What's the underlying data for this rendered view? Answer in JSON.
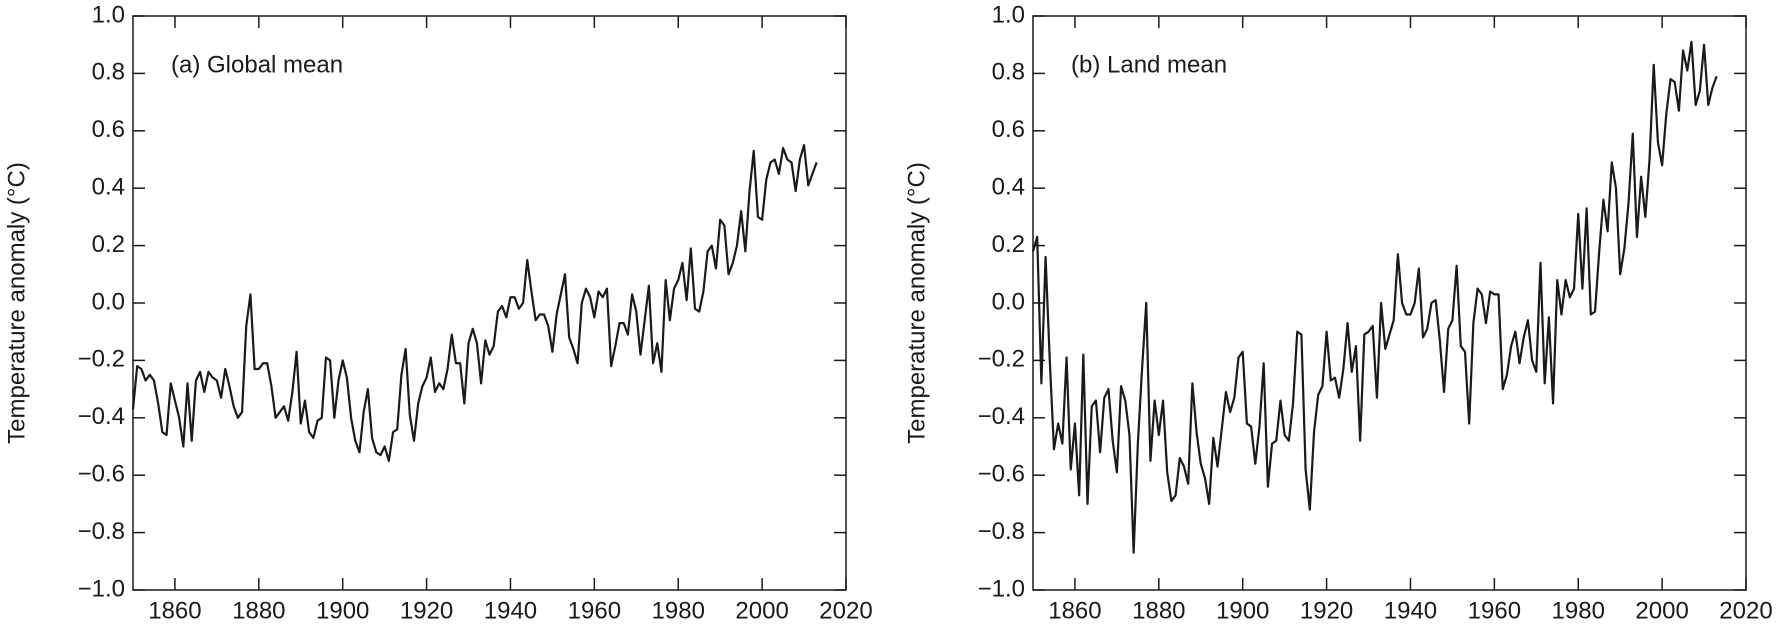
{
  "chart_data": [
    {
      "type": "line",
      "annotation": "(a) Global mean",
      "ylabel": "Temperature anomaly (°C)",
      "color": "#1a1a1a",
      "x": [
        1850,
        1851,
        1852,
        1853,
        1854,
        1855,
        1856,
        1857,
        1858,
        1859,
        1860,
        1861,
        1862,
        1863,
        1864,
        1865,
        1866,
        1867,
        1868,
        1869,
        1870,
        1871,
        1872,
        1873,
        1874,
        1875,
        1876,
        1877,
        1878,
        1879,
        1880,
        1881,
        1882,
        1883,
        1884,
        1885,
        1886,
        1887,
        1888,
        1889,
        1890,
        1891,
        1892,
        1893,
        1894,
        1895,
        1896,
        1897,
        1898,
        1899,
        1900,
        1901,
        1902,
        1903,
        1904,
        1905,
        1906,
        1907,
        1908,
        1909,
        1910,
        1911,
        1912,
        1913,
        1914,
        1915,
        1916,
        1917,
        1918,
        1919,
        1920,
        1921,
        1922,
        1923,
        1924,
        1925,
        1926,
        1927,
        1928,
        1929,
        1930,
        1931,
        1932,
        1933,
        1934,
        1935,
        1936,
        1937,
        1938,
        1939,
        1940,
        1941,
        1942,
        1943,
        1944,
        1945,
        1946,
        1947,
        1948,
        1949,
        1950,
        1951,
        1952,
        1953,
        1954,
        1955,
        1956,
        1957,
        1958,
        1959,
        1960,
        1961,
        1962,
        1963,
        1964,
        1965,
        1966,
        1967,
        1968,
        1969,
        1970,
        1971,
        1972,
        1973,
        1974,
        1975,
        1976,
        1977,
        1978,
        1979,
        1980,
        1981,
        1982,
        1983,
        1984,
        1985,
        1986,
        1987,
        1988,
        1989,
        1990,
        1991,
        1992,
        1993,
        1994,
        1995,
        1996,
        1997,
        1998,
        1999,
        2000,
        2001,
        2002,
        2003,
        2004,
        2005,
        2006,
        2007,
        2008,
        2009,
        2010,
        2011,
        2012,
        2013
      ],
      "values": [
        -0.37,
        -0.22,
        -0.23,
        -0.27,
        -0.25,
        -0.27,
        -0.35,
        -0.45,
        -0.46,
        -0.28,
        -0.34,
        -0.4,
        -0.5,
        -0.28,
        -0.48,
        -0.27,
        -0.24,
        -0.31,
        -0.24,
        -0.26,
        -0.27,
        -0.33,
        -0.23,
        -0.29,
        -0.36,
        -0.4,
        -0.38,
        -0.08,
        0.03,
        -0.23,
        -0.23,
        -0.21,
        -0.21,
        -0.29,
        -0.4,
        -0.38,
        -0.36,
        -0.41,
        -0.31,
        -0.17,
        -0.42,
        -0.34,
        -0.45,
        -0.47,
        -0.41,
        -0.4,
        -0.19,
        -0.2,
        -0.4,
        -0.27,
        -0.2,
        -0.26,
        -0.4,
        -0.48,
        -0.52,
        -0.38,
        -0.3,
        -0.47,
        -0.52,
        -0.53,
        -0.5,
        -0.55,
        -0.45,
        -0.44,
        -0.25,
        -0.16,
        -0.39,
        -0.48,
        -0.35,
        -0.29,
        -0.26,
        -0.19,
        -0.31,
        -0.28,
        -0.3,
        -0.23,
        -0.11,
        -0.21,
        -0.21,
        -0.35,
        -0.14,
        -0.09,
        -0.14,
        -0.28,
        -0.13,
        -0.18,
        -0.15,
        -0.03,
        -0.01,
        -0.05,
        0.02,
        0.02,
        -0.02,
        0.0,
        0.15,
        0.04,
        -0.06,
        -0.04,
        -0.04,
        -0.08,
        -0.17,
        -0.04,
        0.03,
        0.1,
        -0.12,
        -0.16,
        -0.21,
        0.0,
        0.05,
        0.02,
        -0.05,
        0.04,
        0.02,
        0.05,
        -0.22,
        -0.15,
        -0.07,
        -0.07,
        -0.11,
        0.03,
        -0.03,
        -0.18,
        -0.06,
        0.06,
        -0.21,
        -0.14,
        -0.24,
        0.08,
        -0.06,
        0.05,
        0.08,
        0.14,
        0.01,
        0.19,
        -0.02,
        -0.03,
        0.04,
        0.18,
        0.2,
        0.12,
        0.29,
        0.27,
        0.1,
        0.14,
        0.2,
        0.32,
        0.18,
        0.39,
        0.53,
        0.3,
        0.29,
        0.43,
        0.49,
        0.5,
        0.45,
        0.54,
        0.5,
        0.49,
        0.39,
        0.5,
        0.55,
        0.41,
        0.45,
        0.49
      ],
      "xlim": [
        1850,
        2020
      ],
      "xticks": [
        1860,
        1880,
        1900,
        1920,
        1940,
        1960,
        1980,
        2000,
        2020
      ],
      "ylim": [
        -1.0,
        1.0
      ],
      "yticks": [
        {
          "value": -1.0,
          "label": "−1.0"
        },
        {
          "value": -0.8,
          "label": "−0.8"
        },
        {
          "value": -0.6,
          "label": "−0.6"
        },
        {
          "value": -0.4,
          "label": "−0.4"
        },
        {
          "value": -0.2,
          "label": "−0.2"
        },
        {
          "value": 0.0,
          "label": "0.0"
        },
        {
          "value": 0.2,
          "label": "0.2"
        },
        {
          "value": 0.4,
          "label": "0.4"
        },
        {
          "value": 0.6,
          "label": "0.6"
        },
        {
          "value": 0.8,
          "label": "0.8"
        },
        {
          "value": 1.0,
          "label": "1.0"
        }
      ]
    },
    {
      "type": "line",
      "annotation": "(b) Land mean",
      "ylabel": "Temperature anomaly (°C)",
      "color": "#1a1a1a",
      "x": [
        1850,
        1851,
        1852,
        1853,
        1854,
        1855,
        1856,
        1857,
        1858,
        1859,
        1860,
        1861,
        1862,
        1863,
        1864,
        1865,
        1866,
        1867,
        1868,
        1869,
        1870,
        1871,
        1872,
        1873,
        1874,
        1875,
        1876,
        1877,
        1878,
        1879,
        1880,
        1881,
        1882,
        1883,
        1884,
        1885,
        1886,
        1887,
        1888,
        1889,
        1890,
        1891,
        1892,
        1893,
        1894,
        1895,
        1896,
        1897,
        1898,
        1899,
        1900,
        1901,
        1902,
        1903,
        1904,
        1905,
        1906,
        1907,
        1908,
        1909,
        1910,
        1911,
        1912,
        1913,
        1914,
        1915,
        1916,
        1917,
        1918,
        1919,
        1920,
        1921,
        1922,
        1923,
        1924,
        1925,
        1926,
        1927,
        1928,
        1929,
        1930,
        1931,
        1932,
        1933,
        1934,
        1935,
        1936,
        1937,
        1938,
        1939,
        1940,
        1941,
        1942,
        1943,
        1944,
        1945,
        1946,
        1947,
        1948,
        1949,
        1950,
        1951,
        1952,
        1953,
        1954,
        1955,
        1956,
        1957,
        1958,
        1959,
        1960,
        1961,
        1962,
        1963,
        1964,
        1965,
        1966,
        1967,
        1968,
        1969,
        1970,
        1971,
        1972,
        1973,
        1974,
        1975,
        1976,
        1977,
        1978,
        1979,
        1980,
        1981,
        1982,
        1983,
        1984,
        1985,
        1986,
        1987,
        1988,
        1989,
        1990,
        1991,
        1992,
        1993,
        1994,
        1995,
        1996,
        1997,
        1998,
        1999,
        2000,
        2001,
        2002,
        2003,
        2004,
        2005,
        2006,
        2007,
        2008,
        2009,
        2010,
        2011,
        2012,
        2013
      ],
      "values": [
        0.18,
        0.23,
        -0.28,
        0.16,
        -0.2,
        -0.51,
        -0.42,
        -0.49,
        -0.19,
        -0.58,
        -0.42,
        -0.67,
        -0.18,
        -0.7,
        -0.36,
        -0.34,
        -0.52,
        -0.33,
        -0.3,
        -0.48,
        -0.59,
        -0.29,
        -0.34,
        -0.46,
        -0.87,
        -0.49,
        -0.23,
        0.0,
        -0.55,
        -0.34,
        -0.46,
        -0.34,
        -0.59,
        -0.69,
        -0.67,
        -0.54,
        -0.57,
        -0.63,
        -0.28,
        -0.45,
        -0.56,
        -0.61,
        -0.7,
        -0.47,
        -0.57,
        -0.44,
        -0.31,
        -0.38,
        -0.33,
        -0.19,
        -0.17,
        -0.42,
        -0.43,
        -0.56,
        -0.43,
        -0.21,
        -0.64,
        -0.49,
        -0.48,
        -0.34,
        -0.46,
        -0.48,
        -0.35,
        -0.1,
        -0.11,
        -0.58,
        -0.72,
        -0.45,
        -0.32,
        -0.29,
        -0.1,
        -0.27,
        -0.26,
        -0.33,
        -0.23,
        -0.07,
        -0.24,
        -0.15,
        -0.48,
        -0.11,
        -0.1,
        -0.08,
        -0.33,
        0.0,
        -0.16,
        -0.11,
        -0.06,
        0.17,
        0.0,
        -0.04,
        -0.04,
        0.0,
        0.12,
        -0.12,
        -0.09,
        0.0,
        0.01,
        -0.13,
        -0.31,
        -0.09,
        -0.06,
        0.13,
        -0.15,
        -0.17,
        -0.42,
        -0.07,
        0.05,
        0.03,
        -0.07,
        0.04,
        0.03,
        0.03,
        -0.3,
        -0.25,
        -0.15,
        -0.1,
        -0.21,
        -0.12,
        -0.06,
        -0.2,
        -0.24,
        0.14,
        -0.28,
        -0.05,
        -0.35,
        0.08,
        -0.04,
        0.08,
        0.02,
        0.05,
        0.31,
        0.05,
        0.33,
        -0.04,
        -0.03,
        0.18,
        0.36,
        0.25,
        0.49,
        0.4,
        0.1,
        0.19,
        0.35,
        0.59,
        0.23,
        0.44,
        0.3,
        0.5,
        0.83,
        0.56,
        0.48,
        0.66,
        0.78,
        0.77,
        0.67,
        0.88,
        0.81,
        0.91,
        0.69,
        0.74,
        0.9,
        0.69,
        0.75,
        0.79
      ],
      "xlim": [
        1850,
        2020
      ],
      "xticks": [
        1860,
        1880,
        1900,
        1920,
        1940,
        1960,
        1980,
        2000,
        2020
      ],
      "ylim": [
        -1.0,
        1.0
      ],
      "yticks": [
        {
          "value": -1.0,
          "label": "−1.0"
        },
        {
          "value": -0.8,
          "label": "−0.8"
        },
        {
          "value": -0.6,
          "label": "−0.6"
        },
        {
          "value": -0.4,
          "label": "−0.4"
        },
        {
          "value": -0.2,
          "label": "−0.2"
        },
        {
          "value": 0.0,
          "label": "0.0"
        },
        {
          "value": 0.2,
          "label": "0.2"
        },
        {
          "value": 0.4,
          "label": "0.4"
        },
        {
          "value": 0.6,
          "label": "0.6"
        },
        {
          "value": 0.8,
          "label": "0.8"
        },
        {
          "value": 1.0,
          "label": "1.0"
        }
      ]
    }
  ]
}
